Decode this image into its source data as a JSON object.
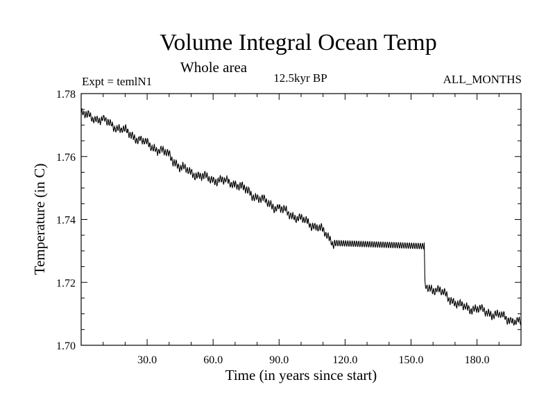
{
  "chart_data": {
    "type": "line",
    "title": "Volume Integral Ocean Temp",
    "subtitle": "Whole area",
    "annotations": {
      "left": "Expt = temlN1",
      "center": "12.5kyr BP",
      "right": "ALL_MONTHS"
    },
    "xlabel": "Time (in years since start)",
    "ylabel": "Temperature (in C)",
    "xlim": [
      0,
      200
    ],
    "ylim": [
      1.7,
      1.78
    ],
    "x_ticks": [
      "30.0",
      "60.0",
      "90.0",
      "120.0",
      "150.0",
      "180.0"
    ],
    "x_tick_values": [
      30,
      60,
      90,
      120,
      150,
      180
    ],
    "y_ticks": [
      "1.70",
      "1.72",
      "1.74",
      "1.76",
      "1.78"
    ],
    "y_tick_values": [
      1.7,
      1.72,
      1.74,
      1.76,
      1.78
    ],
    "grid": false,
    "series": [
      {
        "name": "temlN1",
        "color": "#000000",
        "seasonal_amplitude": 0.0009,
        "trend": [
          {
            "x": 0,
            "y": 1.7735
          },
          {
            "x": 10,
            "y": 1.7715
          },
          {
            "x": 20,
            "y": 1.768
          },
          {
            "x": 30,
            "y": 1.764
          },
          {
            "x": 40,
            "y": 1.7605
          },
          {
            "x": 45,
            "y": 1.7565
          },
          {
            "x": 55,
            "y": 1.7535
          },
          {
            "x": 70,
            "y": 1.7515
          },
          {
            "x": 80,
            "y": 1.747
          },
          {
            "x": 90,
            "y": 1.7435
          },
          {
            "x": 100,
            "y": 1.74
          },
          {
            "x": 108,
            "y": 1.7375
          },
          {
            "x": 115,
            "y": 1.7325
          },
          {
            "x": 156,
            "y": 1.7315
          },
          {
            "x": 156.3,
            "y": 1.719
          },
          {
            "x": 165,
            "y": 1.7165
          },
          {
            "x": 172,
            "y": 1.7125
          },
          {
            "x": 180,
            "y": 1.7115
          },
          {
            "x": 190,
            "y": 1.7095
          },
          {
            "x": 200,
            "y": 1.707
          }
        ]
      }
    ]
  }
}
